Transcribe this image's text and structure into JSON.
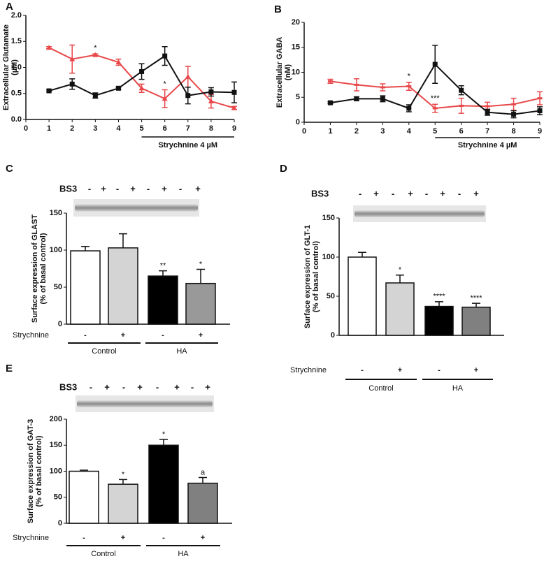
{
  "chart_data": [
    {
      "type": "line",
      "label": "A",
      "ylabel": [
        "Extracellular Glutamate",
        "(µM)"
      ],
      "x": [
        1,
        2,
        3,
        4,
        5,
        6,
        7,
        8,
        9
      ],
      "xlim": [
        0,
        9
      ],
      "xticks": [
        0,
        1,
        2,
        3,
        4,
        5,
        6,
        7,
        8,
        9
      ],
      "ylim": [
        0,
        2
      ],
      "yticks": [
        {
          "value": 0,
          "label": "0.0"
        },
        {
          "value": 0.5,
          "label": "0.5"
        },
        {
          "value": 1,
          "label": "1.0"
        },
        {
          "value": 1.5,
          "label": "1.5"
        },
        {
          "value": 2,
          "label": "2.0"
        }
      ],
      "series": [
        {
          "color": "#e8484a",
          "marker": "triangle",
          "values": [
            1.38,
            1.16,
            1.24,
            1.1,
            0.6,
            0.4,
            0.82,
            0.35,
            0.22
          ],
          "errors": [
            0.02,
            0.27,
            0.02,
            0.06,
            0.08,
            0.17,
            0.2,
            0.13,
            0.03
          ]
        },
        {
          "color": "#111111",
          "marker": "square",
          "values": [
            0.55,
            0.68,
            0.46,
            0.6,
            0.92,
            1.22,
            0.46,
            0.53,
            0.52
          ],
          "errors": [
            0.02,
            0.1,
            0.05,
            0.02,
            0.15,
            0.18,
            0.16,
            0.08,
            0.2
          ]
        }
      ],
      "annotations": [
        {
          "text": "*",
          "x": 3
        },
        {
          "text": "*",
          "x": 6
        }
      ],
      "treatment": {
        "label": "Strychnine 4 µM",
        "from": 5,
        "to": 9
      }
    },
    {
      "type": "line",
      "label": "B",
      "ylabel": [
        "Extracellular GABA",
        "(nM)"
      ],
      "x": [
        1,
        2,
        3,
        4,
        5,
        6,
        7,
        8,
        9
      ],
      "xlim": [
        0,
        9
      ],
      "xticks": [
        0,
        1,
        2,
        3,
        4,
        5,
        6,
        7,
        8,
        9
      ],
      "ylim": [
        0,
        20
      ],
      "yticks": [
        0,
        5,
        10,
        15,
        20
      ],
      "series": [
        {
          "color": "#e8484a",
          "marker": "dash",
          "values": [
            8.2,
            7.5,
            7.0,
            7.2,
            2.8,
            3.3,
            3.2,
            3.6,
            4.8
          ],
          "errors": [
            0.4,
            1.2,
            0.7,
            0.8,
            0.8,
            1.5,
            0.8,
            1.2,
            1.3
          ]
        },
        {
          "color": "#111111",
          "marker": "square",
          "values": [
            3.9,
            4.7,
            4.7,
            2.8,
            11.6,
            6.4,
            2.0,
            1.6,
            2.3
          ],
          "errors": [
            0.2,
            0.4,
            0.6,
            0.7,
            3.8,
            0.9,
            0.6,
            0.7,
            0.8
          ]
        }
      ],
      "annotations": [
        {
          "text": "*",
          "x": 4
        },
        {
          "text": "***",
          "x": 5
        }
      ],
      "treatment": {
        "label": "Strychnine 4 µM",
        "from": 5,
        "to": 9
      }
    },
    {
      "type": "bar",
      "label": "C",
      "ylabel": [
        "Surface expression of GLAST",
        "(% of basal control)"
      ],
      "blot_label": "BS3",
      "blot_lanes": [
        "-",
        "+",
        "-",
        "+",
        "-",
        "+",
        "-",
        "+"
      ],
      "row_label": "Strychnine",
      "categories": [
        "-",
        "+",
        "-",
        "+"
      ],
      "groups": [
        "Control",
        "HA"
      ],
      "values": [
        99,
        103,
        65,
        55
      ],
      "errors": [
        6,
        19,
        7,
        19
      ],
      "colors": [
        "#ffffff",
        "#d4d4d4",
        "#000000",
        "#999999"
      ],
      "significance": [
        null,
        null,
        "**",
        "*"
      ],
      "ylim": [
        0,
        150
      ],
      "yticks": [
        0,
        50,
        100,
        150
      ]
    },
    {
      "type": "bar",
      "label": "D",
      "ylabel": [
        "Surface expression of GLT-1",
        "(% of basal control)"
      ],
      "blot_label": "BS3",
      "blot_lanes": [
        "-",
        "+",
        "-",
        "+",
        "-",
        "+",
        "-",
        "+"
      ],
      "row_label": "Strychnine",
      "categories": [
        "-",
        "+",
        "-",
        "+"
      ],
      "groups": [
        "Control",
        "HA"
      ],
      "values": [
        100,
        67,
        37,
        36
      ],
      "errors": [
        6,
        10,
        6,
        5
      ],
      "colors": [
        "#ffffff",
        "#d4d4d4",
        "#000000",
        "#808080"
      ],
      "significance": [
        null,
        "*",
        "****",
        "****"
      ],
      "ylim": [
        0,
        150
      ],
      "yticks": [
        0,
        50,
        100,
        150
      ]
    },
    {
      "type": "bar",
      "label": "E",
      "ylabel": [
        "Surface expression of GAT-3",
        "(% of basal control)"
      ],
      "blot_label": "BS3",
      "blot_lanes": [
        "-",
        "+",
        "-",
        "+",
        "-",
        "+",
        "-",
        "+"
      ],
      "row_label": "Strychnine",
      "categories": [
        "-",
        "+",
        "-",
        "+"
      ],
      "groups": [
        "Control",
        "HA"
      ],
      "values": [
        100,
        75,
        150,
        77
      ],
      "errors": [
        2,
        9,
        11,
        11
      ],
      "colors": [
        "#ffffff",
        "#d4d4d4",
        "#000000",
        "#808080"
      ],
      "significance": [
        null,
        "*",
        "*",
        "a"
      ],
      "ylim": [
        0,
        200
      ],
      "yticks": [
        0,
        50,
        100,
        150,
        200
      ]
    }
  ]
}
